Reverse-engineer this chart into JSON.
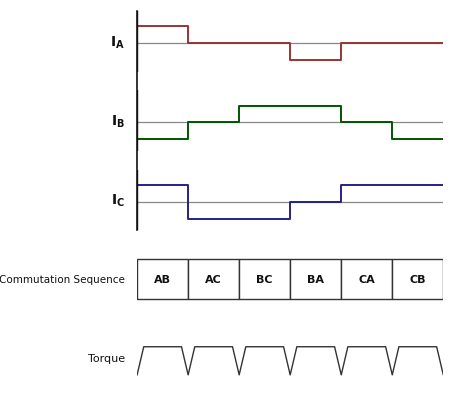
{
  "bg_color": "#ffffff",
  "ia_color": "#993333",
  "ib_color": "#005500",
  "ic_color": "#222288",
  "baseline_color": "#888888",
  "vline_color": "#111111",
  "text_color": "#111111",
  "commutation_labels": [
    "AB",
    "AC",
    "BC",
    "BA",
    "CA",
    "CB"
  ],
  "commutation_label": "Commutation Sequence",
  "torque_label": "Torque",
  "ia_x": [
    0,
    0,
    1,
    1,
    3,
    3,
    4,
    4,
    5,
    5,
    6
  ],
  "ia_y": [
    0,
    1,
    1,
    0,
    0,
    -1,
    -1,
    0,
    0,
    0,
    0
  ],
  "ib_x": [
    0,
    0,
    1,
    1,
    2,
    2,
    4,
    4,
    5,
    5,
    6,
    6
  ],
  "ib_y": [
    0,
    -1,
    -1,
    0,
    0,
    1,
    1,
    0,
    0,
    -1,
    -1,
    -1
  ],
  "ic_x": [
    0,
    0,
    1,
    1,
    3,
    3,
    4,
    4,
    6
  ],
  "ic_y": [
    0,
    1,
    1,
    -1,
    -1,
    0,
    0,
    1,
    1
  ],
  "lw": 1.4,
  "figsize": [
    4.57,
    4.02
  ],
  "dpi": 100
}
